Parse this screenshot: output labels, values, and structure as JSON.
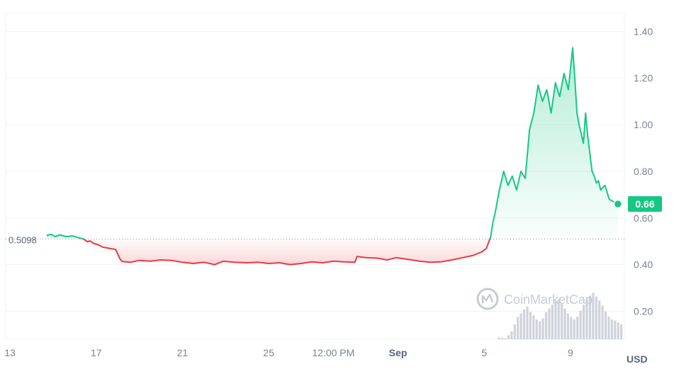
{
  "chart_data": {
    "type": "area",
    "y_ticks": [
      "1.40",
      "1.20",
      "1.00",
      "0.80",
      "0.60",
      "0.40",
      "0.20"
    ],
    "y_tick_values": [
      1.4,
      1.2,
      1.0,
      0.8,
      0.6,
      0.4,
      0.2
    ],
    "ylim": [
      0.08,
      1.48
    ],
    "x_ticks": [
      {
        "label": "13",
        "t": 0.0,
        "bold": false
      },
      {
        "label": "17",
        "t": 4.0,
        "bold": false
      },
      {
        "label": "21",
        "t": 8.0,
        "bold": false
      },
      {
        "label": "25",
        "t": 12.0,
        "bold": false
      },
      {
        "label": "12:00 PM",
        "t": 15.0,
        "bold": false
      },
      {
        "label": "Sep",
        "t": 18.0,
        "bold": true
      },
      {
        "label": "5",
        "t": 22.0,
        "bold": false
      },
      {
        "label": "9",
        "t": 26.0,
        "bold": false
      }
    ],
    "xlim": [
      -0.2,
      28.5
    ],
    "currency": "USD",
    "reference_price": 0.5098,
    "reference_label": "0.5098",
    "current_price_label": "0.66",
    "current_price": 0.66,
    "watermark": "CoinMarketCap",
    "grid": true,
    "colors": {
      "up": "#16c784",
      "down": "#ea3943",
      "price_badge": "#16c784",
      "axis_text": "#7a8395",
      "volume": "#c3c8d2"
    },
    "series": [
      {
        "x": [
          1.7,
          1.9,
          2.1,
          2.3,
          2.6,
          2.9,
          3.2,
          3.4,
          3.6,
          3.7,
          3.9,
          4.1,
          4.3,
          4.6,
          4.9,
          5.0,
          5.1,
          5.2,
          5.6,
          6.0,
          6.5,
          7.0,
          7.5,
          8.0,
          8.5,
          9.0,
          9.5,
          9.9,
          10.4,
          11.0,
          11.5,
          12.0,
          12.5,
          13.0,
          13.5,
          14.0,
          14.5,
          15.0,
          15.5,
          16.0,
          16.1,
          16.5,
          17.0,
          17.5,
          17.9,
          18.5,
          19.0,
          19.5,
          20.0,
          20.5,
          21.0,
          21.5,
          21.9,
          22.1,
          22.3,
          22.4,
          22.5,
          22.7,
          22.9,
          23.1,
          23.3,
          23.5,
          23.7,
          23.9,
          24.1,
          24.3,
          24.5,
          24.7,
          24.9,
          25.1,
          25.3,
          25.5,
          25.7,
          25.9,
          26.1,
          26.2,
          26.3,
          26.4,
          26.5,
          26.6,
          26.7,
          26.8,
          27.0,
          27.1,
          27.2,
          27.3,
          27.4,
          27.6,
          27.8,
          28.0,
          28.2
        ],
        "y": [
          0.525,
          0.53,
          0.52,
          0.528,
          0.52,
          0.523,
          0.515,
          0.51,
          0.498,
          0.502,
          0.49,
          0.485,
          0.475,
          0.47,
          0.465,
          0.445,
          0.425,
          0.413,
          0.41,
          0.418,
          0.415,
          0.42,
          0.418,
          0.41,
          0.405,
          0.41,
          0.4,
          0.415,
          0.41,
          0.408,
          0.41,
          0.405,
          0.408,
          0.4,
          0.405,
          0.412,
          0.408,
          0.415,
          0.412,
          0.41,
          0.435,
          0.43,
          0.428,
          0.42,
          0.43,
          0.422,
          0.415,
          0.41,
          0.412,
          0.42,
          0.43,
          0.44,
          0.455,
          0.47,
          0.52,
          0.58,
          0.62,
          0.72,
          0.8,
          0.74,
          0.78,
          0.72,
          0.8,
          0.77,
          0.98,
          1.05,
          1.17,
          1.1,
          1.15,
          1.05,
          1.18,
          1.12,
          1.22,
          1.15,
          1.33,
          1.2,
          1.05,
          1.0,
          0.96,
          0.92,
          1.05,
          0.95,
          0.8,
          0.78,
          0.75,
          0.76,
          0.72,
          0.74,
          0.68,
          0.67,
          0.66
        ]
      }
    ],
    "volume": [
      0.04,
      0.03,
      0.02,
      0.08,
      0.16,
      0.3,
      0.45,
      0.52,
      0.6,
      0.66,
      0.55,
      0.48,
      0.4,
      0.36,
      0.42,
      0.55,
      0.62,
      0.7,
      0.76,
      0.8,
      0.72,
      0.62,
      0.52,
      0.45,
      0.4,
      0.46,
      0.58,
      0.7,
      0.8,
      0.88,
      0.94,
      0.86,
      0.78,
      0.68,
      0.56,
      0.46,
      0.4,
      0.38,
      0.34,
      0.3
    ]
  }
}
